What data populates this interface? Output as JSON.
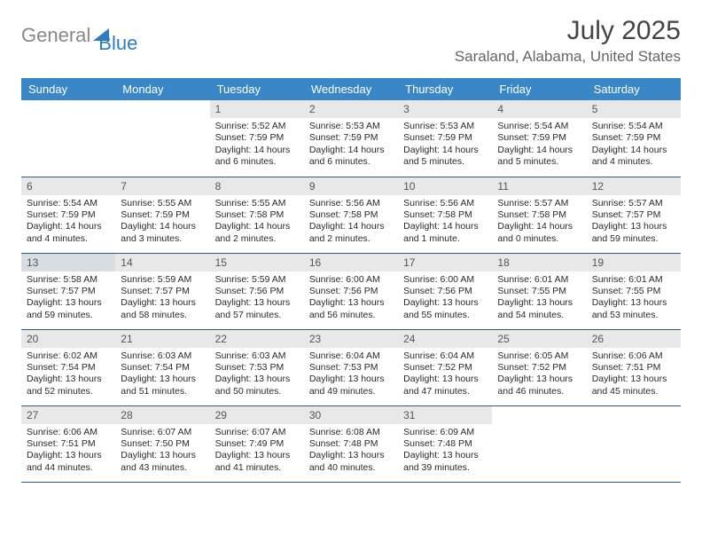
{
  "logo": {
    "part1": "General",
    "part2": "Blue"
  },
  "title": "July 2025",
  "location": "Saraland, Alabama, United States",
  "colors": {
    "header_bg": "#3a87c8",
    "header_fg": "#ffffff",
    "daynum_bg": "#e8e8e8",
    "row_border": "#2a5a8a",
    "logo_gray": "#888888",
    "logo_blue": "#2e7bc4"
  },
  "weekdays": [
    "Sunday",
    "Monday",
    "Tuesday",
    "Wednesday",
    "Thursday",
    "Friday",
    "Saturday"
  ],
  "weeks": [
    [
      null,
      null,
      {
        "n": "1",
        "sr": "5:52 AM",
        "ss": "7:59 PM",
        "dl": "14 hours and 6 minutes."
      },
      {
        "n": "2",
        "sr": "5:53 AM",
        "ss": "7:59 PM",
        "dl": "14 hours and 6 minutes."
      },
      {
        "n": "3",
        "sr": "5:53 AM",
        "ss": "7:59 PM",
        "dl": "14 hours and 5 minutes."
      },
      {
        "n": "4",
        "sr": "5:54 AM",
        "ss": "7:59 PM",
        "dl": "14 hours and 5 minutes."
      },
      {
        "n": "5",
        "sr": "5:54 AM",
        "ss": "7:59 PM",
        "dl": "14 hours and 4 minutes."
      }
    ],
    [
      {
        "n": "6",
        "sr": "5:54 AM",
        "ss": "7:59 PM",
        "dl": "14 hours and 4 minutes."
      },
      {
        "n": "7",
        "sr": "5:55 AM",
        "ss": "7:59 PM",
        "dl": "14 hours and 3 minutes."
      },
      {
        "n": "8",
        "sr": "5:55 AM",
        "ss": "7:58 PM",
        "dl": "14 hours and 2 minutes."
      },
      {
        "n": "9",
        "sr": "5:56 AM",
        "ss": "7:58 PM",
        "dl": "14 hours and 2 minutes."
      },
      {
        "n": "10",
        "sr": "5:56 AM",
        "ss": "7:58 PM",
        "dl": "14 hours and 1 minute."
      },
      {
        "n": "11",
        "sr": "5:57 AM",
        "ss": "7:58 PM",
        "dl": "14 hours and 0 minutes."
      },
      {
        "n": "12",
        "sr": "5:57 AM",
        "ss": "7:57 PM",
        "dl": "13 hours and 59 minutes."
      }
    ],
    [
      {
        "n": "13",
        "sr": "5:58 AM",
        "ss": "7:57 PM",
        "dl": "13 hours and 59 minutes.",
        "today": true
      },
      {
        "n": "14",
        "sr": "5:59 AM",
        "ss": "7:57 PM",
        "dl": "13 hours and 58 minutes."
      },
      {
        "n": "15",
        "sr": "5:59 AM",
        "ss": "7:56 PM",
        "dl": "13 hours and 57 minutes."
      },
      {
        "n": "16",
        "sr": "6:00 AM",
        "ss": "7:56 PM",
        "dl": "13 hours and 56 minutes."
      },
      {
        "n": "17",
        "sr": "6:00 AM",
        "ss": "7:56 PM",
        "dl": "13 hours and 55 minutes."
      },
      {
        "n": "18",
        "sr": "6:01 AM",
        "ss": "7:55 PM",
        "dl": "13 hours and 54 minutes."
      },
      {
        "n": "19",
        "sr": "6:01 AM",
        "ss": "7:55 PM",
        "dl": "13 hours and 53 minutes."
      }
    ],
    [
      {
        "n": "20",
        "sr": "6:02 AM",
        "ss": "7:54 PM",
        "dl": "13 hours and 52 minutes."
      },
      {
        "n": "21",
        "sr": "6:03 AM",
        "ss": "7:54 PM",
        "dl": "13 hours and 51 minutes."
      },
      {
        "n": "22",
        "sr": "6:03 AM",
        "ss": "7:53 PM",
        "dl": "13 hours and 50 minutes."
      },
      {
        "n": "23",
        "sr": "6:04 AM",
        "ss": "7:53 PM",
        "dl": "13 hours and 49 minutes."
      },
      {
        "n": "24",
        "sr": "6:04 AM",
        "ss": "7:52 PM",
        "dl": "13 hours and 47 minutes."
      },
      {
        "n": "25",
        "sr": "6:05 AM",
        "ss": "7:52 PM",
        "dl": "13 hours and 46 minutes."
      },
      {
        "n": "26",
        "sr": "6:06 AM",
        "ss": "7:51 PM",
        "dl": "13 hours and 45 minutes."
      }
    ],
    [
      {
        "n": "27",
        "sr": "6:06 AM",
        "ss": "7:51 PM",
        "dl": "13 hours and 44 minutes."
      },
      {
        "n": "28",
        "sr": "6:07 AM",
        "ss": "7:50 PM",
        "dl": "13 hours and 43 minutes."
      },
      {
        "n": "29",
        "sr": "6:07 AM",
        "ss": "7:49 PM",
        "dl": "13 hours and 41 minutes."
      },
      {
        "n": "30",
        "sr": "6:08 AM",
        "ss": "7:48 PM",
        "dl": "13 hours and 40 minutes."
      },
      {
        "n": "31",
        "sr": "6:09 AM",
        "ss": "7:48 PM",
        "dl": "13 hours and 39 minutes."
      },
      null,
      null
    ]
  ],
  "labels": {
    "sunrise": "Sunrise:",
    "sunset": "Sunset:",
    "daylight": "Daylight:"
  }
}
